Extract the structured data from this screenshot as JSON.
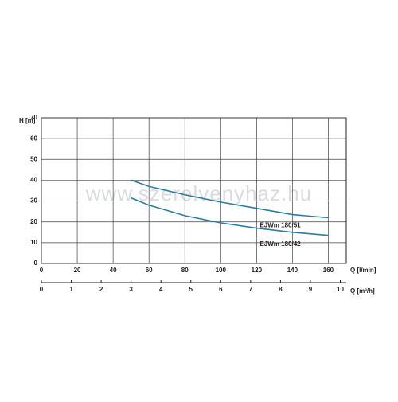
{
  "chart_data": {
    "type": "line",
    "watermark": "www.szerelvenyhaz.hu",
    "ylabel": "H [m]",
    "xlabel": "Q [l/min]",
    "x2label": "Q [m³/h]",
    "x": [
      50,
      60,
      80,
      100,
      120,
      140,
      160
    ],
    "series": [
      {
        "name": "EJWm 180/51",
        "color": "#2b7d9e",
        "values": [
          40,
          37,
          33,
          29.5,
          26.5,
          23.5,
          22
        ]
      },
      {
        "name": "EJWm 180/42",
        "color": "#2b7d9e",
        "values": [
          31.5,
          28,
          23,
          19.5,
          17,
          15,
          13.5
        ]
      }
    ],
    "xlim": [
      0,
      170
    ],
    "xticks": [
      0,
      20,
      40,
      60,
      80,
      100,
      120,
      140,
      160
    ],
    "ylim": [
      0,
      70
    ],
    "yticks": [
      0,
      10,
      20,
      30,
      40,
      50,
      60,
      70
    ],
    "x2lim": [
      0,
      10.2
    ],
    "x2ticks": [
      0,
      1,
      2,
      3,
      4,
      5,
      6,
      7,
      8,
      9,
      10
    ],
    "grid": true
  }
}
